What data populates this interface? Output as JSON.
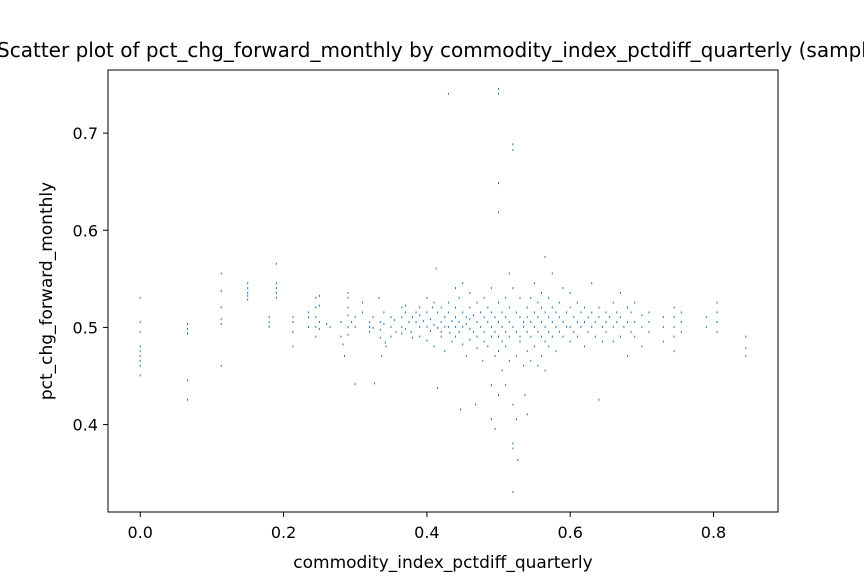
{
  "chart_data": {
    "type": "scatter",
    "title": "Scatter plot of pct_chg_forward_monthly by commodity_index_pctdiff_quarterly (sample)",
    "xlabel": "commodity_index_pctdiff_quarterly",
    "ylabel": "pct_chg_forward_monthly",
    "xlim": [
      -0.045,
      0.89
    ],
    "ylim": [
      0.31,
      0.765
    ],
    "xticks": [
      0.0,
      0.2,
      0.4,
      0.6,
      0.8
    ],
    "xtick_labels": [
      "0.0",
      "0.2",
      "0.4",
      "0.6",
      "0.8"
    ],
    "yticks": [
      0.4,
      0.5,
      0.6,
      0.7
    ],
    "ytick_labels": [
      "0.4",
      "0.5",
      "0.6",
      "0.7"
    ],
    "grid": false,
    "marker": "pixel",
    "color": "#1f77b4",
    "points": [
      [
        0.0,
        0.53
      ],
      [
        0.0,
        0.505
      ],
      [
        0.0,
        0.495
      ],
      [
        0.0,
        0.48
      ],
      [
        0.0,
        0.475
      ],
      [
        0.0,
        0.47
      ],
      [
        0.0,
        0.465
      ],
      [
        0.0,
        0.46
      ],
      [
        0.0,
        0.45
      ],
      [
        0.066,
        0.503
      ],
      [
        0.066,
        0.498
      ],
      [
        0.066,
        0.493
      ],
      [
        0.066,
        0.445
      ],
      [
        0.066,
        0.425
      ],
      [
        0.113,
        0.555
      ],
      [
        0.113,
        0.537
      ],
      [
        0.113,
        0.52
      ],
      [
        0.113,
        0.508
      ],
      [
        0.113,
        0.503
      ],
      [
        0.113,
        0.46
      ],
      [
        0.15,
        0.545
      ],
      [
        0.15,
        0.54
      ],
      [
        0.15,
        0.535
      ],
      [
        0.15,
        0.532
      ],
      [
        0.15,
        0.528
      ],
      [
        0.18,
        0.51
      ],
      [
        0.18,
        0.505
      ],
      [
        0.18,
        0.5
      ],
      [
        0.19,
        0.565
      ],
      [
        0.19,
        0.545
      ],
      [
        0.19,
        0.54
      ],
      [
        0.19,
        0.535
      ],
      [
        0.19,
        0.53
      ],
      [
        0.213,
        0.51
      ],
      [
        0.213,
        0.505
      ],
      [
        0.213,
        0.495
      ],
      [
        0.213,
        0.48
      ],
      [
        0.235,
        0.515
      ],
      [
        0.235,
        0.51
      ],
      [
        0.235,
        0.5
      ],
      [
        0.245,
        0.53
      ],
      [
        0.245,
        0.52
      ],
      [
        0.245,
        0.51
      ],
      [
        0.245,
        0.5
      ],
      [
        0.245,
        0.49
      ],
      [
        0.25,
        0.532
      ],
      [
        0.25,
        0.522
      ],
      [
        0.25,
        0.505
      ],
      [
        0.25,
        0.498
      ],
      [
        0.26,
        0.503
      ],
      [
        0.265,
        0.5
      ],
      [
        0.28,
        0.505
      ],
      [
        0.28,
        0.49
      ],
      [
        0.283,
        0.482
      ],
      [
        0.285,
        0.47
      ],
      [
        0.29,
        0.535
      ],
      [
        0.29,
        0.53
      ],
      [
        0.29,
        0.52
      ],
      [
        0.29,
        0.512
      ],
      [
        0.29,
        0.5
      ],
      [
        0.29,
        0.492
      ],
      [
        0.295,
        0.505
      ],
      [
        0.3,
        0.51
      ],
      [
        0.3,
        0.5
      ],
      [
        0.3,
        0.441
      ],
      [
        0.31,
        0.525
      ],
      [
        0.31,
        0.515
      ],
      [
        0.32,
        0.505
      ],
      [
        0.32,
        0.5
      ],
      [
        0.32,
        0.495
      ],
      [
        0.325,
        0.51
      ],
      [
        0.325,
        0.499
      ],
      [
        0.327,
        0.442
      ],
      [
        0.333,
        0.53
      ],
      [
        0.335,
        0.505
      ],
      [
        0.335,
        0.497
      ],
      [
        0.335,
        0.489
      ],
      [
        0.337,
        0.47
      ],
      [
        0.34,
        0.515
      ],
      [
        0.34,
        0.503
      ],
      [
        0.342,
        0.484
      ],
      [
        0.343,
        0.48
      ],
      [
        0.35,
        0.51
      ],
      [
        0.35,
        0.5
      ],
      [
        0.35,
        0.49
      ],
      [
        0.355,
        0.507
      ],
      [
        0.357,
        0.495
      ],
      [
        0.365,
        0.52
      ],
      [
        0.365,
        0.51
      ],
      [
        0.365,
        0.5
      ],
      [
        0.365,
        0.493
      ],
      [
        0.37,
        0.522
      ],
      [
        0.37,
        0.515
      ],
      [
        0.37,
        0.498
      ],
      [
        0.375,
        0.505
      ],
      [
        0.378,
        0.495
      ],
      [
        0.38,
        0.51
      ],
      [
        0.38,
        0.489
      ],
      [
        0.385,
        0.515
      ],
      [
        0.385,
        0.505
      ],
      [
        0.39,
        0.52
      ],
      [
        0.39,
        0.512
      ],
      [
        0.39,
        0.5
      ],
      [
        0.39,
        0.49
      ],
      [
        0.395,
        0.506
      ],
      [
        0.4,
        0.53
      ],
      [
        0.4,
        0.515
      ],
      [
        0.4,
        0.5
      ],
      [
        0.4,
        0.486
      ],
      [
        0.405,
        0.508
      ],
      [
        0.405,
        0.496
      ],
      [
        0.408,
        0.52
      ],
      [
        0.41,
        0.525
      ],
      [
        0.41,
        0.502
      ],
      [
        0.41,
        0.48
      ],
      [
        0.413,
        0.56
      ],
      [
        0.415,
        0.515
      ],
      [
        0.415,
        0.499
      ],
      [
        0.415,
        0.437
      ],
      [
        0.42,
        0.52
      ],
      [
        0.42,
        0.505
      ],
      [
        0.42,
        0.495
      ],
      [
        0.42,
        0.49
      ],
      [
        0.425,
        0.51
      ],
      [
        0.425,
        0.5
      ],
      [
        0.425,
        0.475
      ],
      [
        0.43,
        0.74
      ],
      [
        0.43,
        0.525
      ],
      [
        0.43,
        0.515
      ],
      [
        0.43,
        0.5
      ],
      [
        0.432,
        0.494
      ],
      [
        0.435,
        0.506
      ],
      [
        0.435,
        0.485
      ],
      [
        0.44,
        0.54
      ],
      [
        0.44,
        0.52
      ],
      [
        0.44,
        0.51
      ],
      [
        0.44,
        0.5
      ],
      [
        0.44,
        0.49
      ],
      [
        0.445,
        0.53
      ],
      [
        0.445,
        0.505
      ],
      [
        0.445,
        0.495
      ],
      [
        0.447,
        0.415
      ],
      [
        0.45,
        0.545
      ],
      [
        0.45,
        0.515
      ],
      [
        0.45,
        0.5
      ],
      [
        0.45,
        0.482
      ],
      [
        0.455,
        0.51
      ],
      [
        0.455,
        0.503
      ],
      [
        0.455,
        0.47
      ],
      [
        0.46,
        0.535
      ],
      [
        0.46,
        0.52
      ],
      [
        0.46,
        0.508
      ],
      [
        0.46,
        0.498
      ],
      [
        0.46,
        0.487
      ],
      [
        0.465,
        0.512
      ],
      [
        0.465,
        0.495
      ],
      [
        0.468,
        0.42
      ],
      [
        0.47,
        0.525
      ],
      [
        0.47,
        0.505
      ],
      [
        0.47,
        0.49
      ],
      [
        0.47,
        0.478
      ],
      [
        0.475,
        0.515
      ],
      [
        0.475,
        0.5
      ],
      [
        0.478,
        0.465
      ],
      [
        0.48,
        0.53
      ],
      [
        0.48,
        0.51
      ],
      [
        0.48,
        0.495
      ],
      [
        0.48,
        0.485
      ],
      [
        0.485,
        0.52
      ],
      [
        0.485,
        0.505
      ],
      [
        0.485,
        0.48
      ],
      [
        0.49,
        0.54
      ],
      [
        0.49,
        0.515
      ],
      [
        0.49,
        0.5
      ],
      [
        0.49,
        0.49
      ],
      [
        0.49,
        0.44
      ],
      [
        0.49,
        0.405
      ],
      [
        0.495,
        0.51
      ],
      [
        0.495,
        0.495
      ],
      [
        0.495,
        0.47
      ],
      [
        0.495,
        0.395
      ],
      [
        0.5,
        0.745
      ],
      [
        0.5,
        0.74
      ],
      [
        0.5,
        0.648
      ],
      [
        0.5,
        0.618
      ],
      [
        0.5,
        0.525
      ],
      [
        0.5,
        0.505
      ],
      [
        0.5,
        0.49
      ],
      [
        0.5,
        0.475
      ],
      [
        0.5,
        0.43
      ],
      [
        0.505,
        0.515
      ],
      [
        0.505,
        0.5
      ],
      [
        0.505,
        0.485
      ],
      [
        0.505,
        0.455
      ],
      [
        0.51,
        0.53
      ],
      [
        0.51,
        0.51
      ],
      [
        0.51,
        0.495
      ],
      [
        0.51,
        0.48
      ],
      [
        0.51,
        0.44
      ],
      [
        0.515,
        0.555
      ],
      [
        0.515,
        0.52
      ],
      [
        0.515,
        0.505
      ],
      [
        0.515,
        0.49
      ],
      [
        0.515,
        0.465
      ],
      [
        0.52,
        0.688
      ],
      [
        0.52,
        0.682
      ],
      [
        0.52,
        0.54
      ],
      [
        0.52,
        0.5
      ],
      [
        0.52,
        0.42
      ],
      [
        0.52,
        0.38
      ],
      [
        0.52,
        0.375
      ],
      [
        0.52,
        0.33
      ],
      [
        0.525,
        0.515
      ],
      [
        0.525,
        0.495
      ],
      [
        0.525,
        0.47
      ],
      [
        0.525,
        0.405
      ],
      [
        0.527,
        0.363
      ],
      [
        0.53,
        0.53
      ],
      [
        0.53,
        0.51
      ],
      [
        0.53,
        0.49
      ],
      [
        0.53,
        0.485
      ],
      [
        0.535,
        0.505
      ],
      [
        0.535,
        0.5
      ],
      [
        0.535,
        0.46
      ],
      [
        0.537,
        0.43
      ],
      [
        0.54,
        0.52
      ],
      [
        0.54,
        0.51
      ],
      [
        0.54,
        0.495
      ],
      [
        0.54,
        0.475
      ],
      [
        0.54,
        0.41
      ],
      [
        0.545,
        0.53
      ],
      [
        0.545,
        0.505
      ],
      [
        0.545,
        0.49
      ],
      [
        0.545,
        0.465
      ],
      [
        0.55,
        0.545
      ],
      [
        0.55,
        0.515
      ],
      [
        0.55,
        0.5
      ],
      [
        0.55,
        0.48
      ],
      [
        0.555,
        0.525
      ],
      [
        0.555,
        0.51
      ],
      [
        0.555,
        0.495
      ],
      [
        0.555,
        0.46
      ],
      [
        0.56,
        0.535
      ],
      [
        0.56,
        0.52
      ],
      [
        0.56,
        0.505
      ],
      [
        0.56,
        0.49
      ],
      [
        0.56,
        0.47
      ],
      [
        0.565,
        0.572
      ],
      [
        0.565,
        0.515
      ],
      [
        0.565,
        0.5
      ],
      [
        0.565,
        0.485
      ],
      [
        0.565,
        0.455
      ],
      [
        0.57,
        0.53
      ],
      [
        0.57,
        0.51
      ],
      [
        0.57,
        0.495
      ],
      [
        0.57,
        0.48
      ],
      [
        0.575,
        0.555
      ],
      [
        0.575,
        0.52
      ],
      [
        0.575,
        0.505
      ],
      [
        0.575,
        0.49
      ],
      [
        0.58,
        0.515
      ],
      [
        0.58,
        0.5
      ],
      [
        0.58,
        0.475
      ],
      [
        0.585,
        0.525
      ],
      [
        0.585,
        0.51
      ],
      [
        0.585,
        0.495
      ],
      [
        0.59,
        0.54
      ],
      [
        0.59,
        0.505
      ],
      [
        0.59,
        0.49
      ],
      [
        0.595,
        0.515
      ],
      [
        0.595,
        0.5
      ],
      [
        0.6,
        0.535
      ],
      [
        0.6,
        0.52
      ],
      [
        0.6,
        0.5
      ],
      [
        0.6,
        0.485
      ],
      [
        0.605,
        0.51
      ],
      [
        0.605,
        0.495
      ],
      [
        0.61,
        0.525
      ],
      [
        0.61,
        0.505
      ],
      [
        0.61,
        0.49
      ],
      [
        0.615,
        0.515
      ],
      [
        0.615,
        0.5
      ],
      [
        0.62,
        0.52
      ],
      [
        0.62,
        0.505
      ],
      [
        0.62,
        0.48
      ],
      [
        0.625,
        0.51
      ],
      [
        0.625,
        0.495
      ],
      [
        0.63,
        0.545
      ],
      [
        0.63,
        0.515
      ],
      [
        0.63,
        0.5
      ],
      [
        0.635,
        0.505
      ],
      [
        0.635,
        0.49
      ],
      [
        0.64,
        0.52
      ],
      [
        0.64,
        0.51
      ],
      [
        0.64,
        0.425
      ],
      [
        0.645,
        0.5
      ],
      [
        0.645,
        0.485
      ],
      [
        0.65,
        0.515
      ],
      [
        0.65,
        0.505
      ],
      [
        0.65,
        0.495
      ],
      [
        0.655,
        0.51
      ],
      [
        0.66,
        0.525
      ],
      [
        0.66,
        0.5
      ],
      [
        0.66,
        0.485
      ],
      [
        0.665,
        0.515
      ],
      [
        0.665,
        0.505
      ],
      [
        0.67,
        0.535
      ],
      [
        0.67,
        0.51
      ],
      [
        0.67,
        0.49
      ],
      [
        0.675,
        0.5
      ],
      [
        0.68,
        0.52
      ],
      [
        0.68,
        0.505
      ],
      [
        0.68,
        0.47
      ],
      [
        0.685,
        0.515
      ],
      [
        0.685,
        0.495
      ],
      [
        0.69,
        0.525
      ],
      [
        0.69,
        0.505
      ],
      [
        0.69,
        0.49
      ],
      [
        0.7,
        0.512
      ],
      [
        0.7,
        0.5
      ],
      [
        0.7,
        0.48
      ],
      [
        0.71,
        0.515
      ],
      [
        0.71,
        0.505
      ],
      [
        0.71,
        0.495
      ],
      [
        0.73,
        0.51
      ],
      [
        0.73,
        0.5
      ],
      [
        0.73,
        0.485
      ],
      [
        0.745,
        0.52
      ],
      [
        0.745,
        0.51
      ],
      [
        0.745,
        0.5
      ],
      [
        0.745,
        0.49
      ],
      [
        0.745,
        0.475
      ],
      [
        0.755,
        0.515
      ],
      [
        0.755,
        0.505
      ],
      [
        0.755,
        0.495
      ],
      [
        0.79,
        0.51
      ],
      [
        0.79,
        0.5
      ],
      [
        0.805,
        0.525
      ],
      [
        0.805,
        0.515
      ],
      [
        0.805,
        0.505
      ],
      [
        0.805,
        0.495
      ],
      [
        0.845,
        0.49
      ],
      [
        0.845,
        0.478
      ],
      [
        0.845,
        0.47
      ]
    ]
  }
}
